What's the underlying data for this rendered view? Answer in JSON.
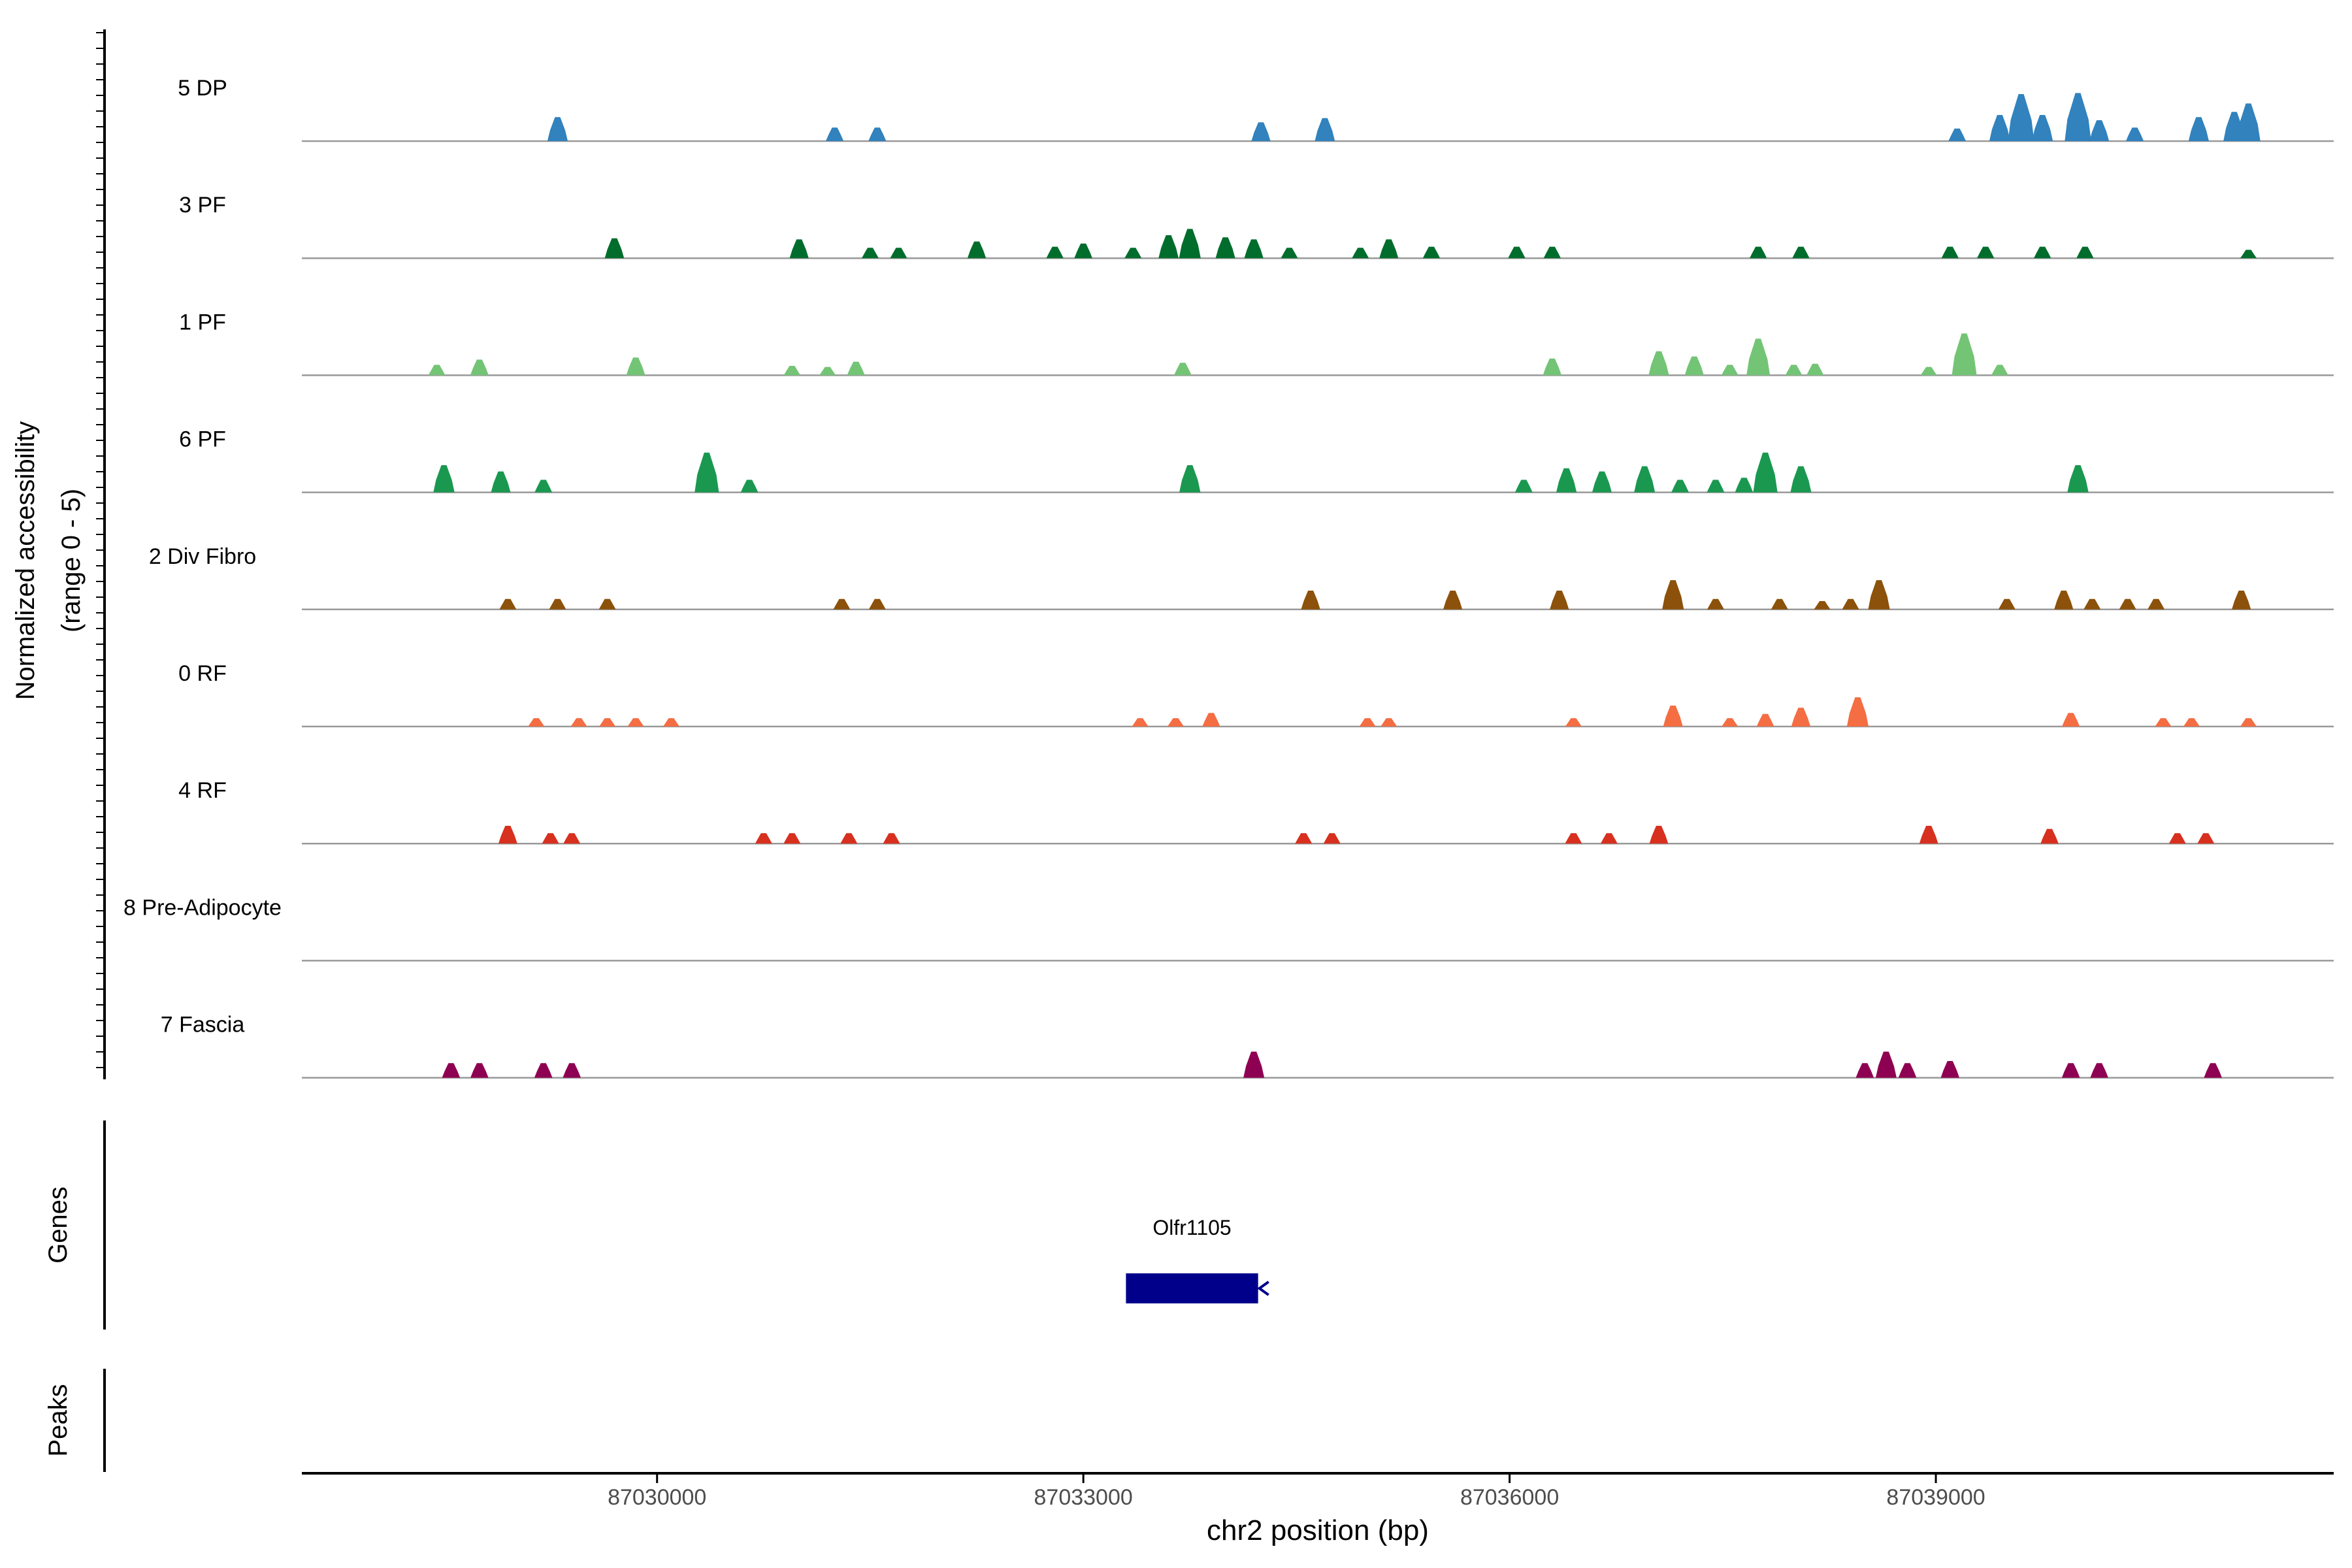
{
  "colors": {
    "baseline": "#999999",
    "axis": "#000000",
    "gene": "#00008B",
    "tick_label": "#4d4d4d"
  },
  "chart_data": {
    "type": "area",
    "title": "",
    "ylabel_line1": "Normalized accessibility",
    "ylabel_line2": "(range 0 - 5)",
    "xlabel": "chr2 position (bp)",
    "genes_label": "Genes",
    "peaks_label": "Peaks",
    "xlim": [
      87027500,
      87041800
    ],
    "ylim": [
      0,
      5
    ],
    "x_ticks": [
      87030000,
      87033000,
      87036000,
      87039000
    ],
    "x_tick_labels": [
      "87030000",
      "87033000",
      "87036000",
      "87039000"
    ],
    "gene": {
      "name": "Olfr1105",
      "start": 87033300,
      "end": 87034230,
      "strand": "-"
    },
    "tracks": [
      {
        "name": "5 DP",
        "color": "#3182BD",
        "peaks": [
          [
            87029300,
            2.3
          ],
          [
            87031250,
            1.3
          ],
          [
            87031550,
            1.3
          ],
          [
            87034250,
            1.8
          ],
          [
            87034700,
            2.2
          ],
          [
            87039150,
            1.2
          ],
          [
            87039450,
            2.5
          ],
          [
            87039600,
            4.5
          ],
          [
            87039750,
            2.5
          ],
          [
            87040000,
            4.6
          ],
          [
            87040150,
            2.0
          ],
          [
            87040400,
            1.3
          ],
          [
            87040850,
            2.3
          ],
          [
            87041100,
            2.8
          ],
          [
            87041200,
            3.6
          ]
        ]
      },
      {
        "name": "3 PF",
        "color": "#006D2C",
        "peaks": [
          [
            87029700,
            1.9
          ],
          [
            87031000,
            1.8
          ],
          [
            87031500,
            1.0
          ],
          [
            87031700,
            1.0
          ],
          [
            87032250,
            1.6
          ],
          [
            87032800,
            1.1
          ],
          [
            87033000,
            1.4
          ],
          [
            87033350,
            1.0
          ],
          [
            87033600,
            2.2
          ],
          [
            87033750,
            2.8
          ],
          [
            87034000,
            2.0
          ],
          [
            87034200,
            1.8
          ],
          [
            87034450,
            1.0
          ],
          [
            87034950,
            1.0
          ],
          [
            87035150,
            1.8
          ],
          [
            87035450,
            1.1
          ],
          [
            87036050,
            1.1
          ],
          [
            87036300,
            1.1
          ],
          [
            87037750,
            1.1
          ],
          [
            87038050,
            1.1
          ],
          [
            87039100,
            1.1
          ],
          [
            87039350,
            1.1
          ],
          [
            87039750,
            1.1
          ],
          [
            87040050,
            1.1
          ],
          [
            87041200,
            0.8
          ]
        ]
      },
      {
        "name": "1 PF",
        "color": "#74C476",
        "peaks": [
          [
            87028450,
            1.0
          ],
          [
            87028750,
            1.5
          ],
          [
            87029850,
            1.7
          ],
          [
            87030950,
            0.9
          ],
          [
            87031200,
            0.8
          ],
          [
            87031400,
            1.3
          ],
          [
            87033700,
            1.2
          ],
          [
            87036300,
            1.6
          ],
          [
            87037050,
            2.3
          ],
          [
            87037300,
            1.8
          ],
          [
            87037550,
            1.0
          ],
          [
            87037750,
            3.5
          ],
          [
            87038000,
            1.0
          ],
          [
            87038150,
            1.1
          ],
          [
            87038950,
            0.8
          ],
          [
            87039200,
            4.0
          ],
          [
            87039450,
            1.0
          ]
        ]
      },
      {
        "name": "6 PF",
        "color": "#1A9850",
        "peaks": [
          [
            87028500,
            2.6
          ],
          [
            87028900,
            2.0
          ],
          [
            87029200,
            1.2
          ],
          [
            87030350,
            3.8
          ],
          [
            87030650,
            1.2
          ],
          [
            87033750,
            2.6
          ],
          [
            87036100,
            1.2
          ],
          [
            87036400,
            2.3
          ],
          [
            87036650,
            2.0
          ],
          [
            87036950,
            2.5
          ],
          [
            87037200,
            1.2
          ],
          [
            87037450,
            1.2
          ],
          [
            87037650,
            1.4
          ],
          [
            87037800,
            3.8
          ],
          [
            87038050,
            2.5
          ],
          [
            87040000,
            2.6
          ]
        ]
      },
      {
        "name": "2 Div Fibro",
        "color": "#8C510A",
        "peaks": [
          [
            87028950,
            1.0
          ],
          [
            87029300,
            1.0
          ],
          [
            87029650,
            1.0
          ],
          [
            87031300,
            1.0
          ],
          [
            87031550,
            1.0
          ],
          [
            87034600,
            1.8
          ],
          [
            87035600,
            1.8
          ],
          [
            87036350,
            1.8
          ],
          [
            87037150,
            2.8
          ],
          [
            87037450,
            1.0
          ],
          [
            87037900,
            1.0
          ],
          [
            87038200,
            0.8
          ],
          [
            87038400,
            1.0
          ],
          [
            87038600,
            2.8
          ],
          [
            87039500,
            1.0
          ],
          [
            87039900,
            1.8
          ],
          [
            87040100,
            1.0
          ],
          [
            87040350,
            1.0
          ],
          [
            87040550,
            1.0
          ],
          [
            87041150,
            1.8
          ]
        ]
      },
      {
        "name": "0 RF",
        "color": "#F46D43",
        "peaks": [
          [
            87029150,
            0.8
          ],
          [
            87029450,
            0.8
          ],
          [
            87029650,
            0.8
          ],
          [
            87029850,
            0.8
          ],
          [
            87030100,
            0.8
          ],
          [
            87033400,
            0.8
          ],
          [
            87033650,
            0.8
          ],
          [
            87033900,
            1.3
          ],
          [
            87035000,
            0.8
          ],
          [
            87035150,
            0.8
          ],
          [
            87036450,
            0.8
          ],
          [
            87037150,
            2.0
          ],
          [
            87037550,
            0.8
          ],
          [
            87037800,
            1.2
          ],
          [
            87038050,
            1.8
          ],
          [
            87038450,
            2.8
          ],
          [
            87039950,
            1.3
          ],
          [
            87040600,
            0.8
          ],
          [
            87040800,
            0.8
          ],
          [
            87041200,
            0.8
          ]
        ]
      },
      {
        "name": "4 RF",
        "color": "#D7301F",
        "peaks": [
          [
            87028950,
            1.7
          ],
          [
            87029250,
            1.0
          ],
          [
            87029400,
            1.0
          ],
          [
            87030750,
            1.0
          ],
          [
            87030950,
            1.0
          ],
          [
            87031350,
            1.0
          ],
          [
            87031650,
            1.0
          ],
          [
            87034550,
            1.0
          ],
          [
            87034750,
            1.0
          ],
          [
            87036450,
            1.0
          ],
          [
            87036700,
            1.0
          ],
          [
            87037050,
            1.7
          ],
          [
            87038950,
            1.7
          ],
          [
            87039800,
            1.4
          ],
          [
            87040700,
            1.0
          ],
          [
            87040900,
            1.0
          ]
        ]
      },
      {
        "name": "8 Pre-Adipocyte",
        "color": "#E6AB02",
        "peaks": []
      },
      {
        "name": "7 Fascia",
        "color": "#8E0152",
        "peaks": [
          [
            87028550,
            1.4
          ],
          [
            87028750,
            1.4
          ],
          [
            87029200,
            1.4
          ],
          [
            87029400,
            1.4
          ],
          [
            87034200,
            2.5
          ],
          [
            87038500,
            1.4
          ],
          [
            87038650,
            2.5
          ],
          [
            87038800,
            1.4
          ],
          [
            87039100,
            1.6
          ],
          [
            87039950,
            1.4
          ],
          [
            87040150,
            1.4
          ],
          [
            87040950,
            1.4
          ]
        ]
      }
    ]
  }
}
